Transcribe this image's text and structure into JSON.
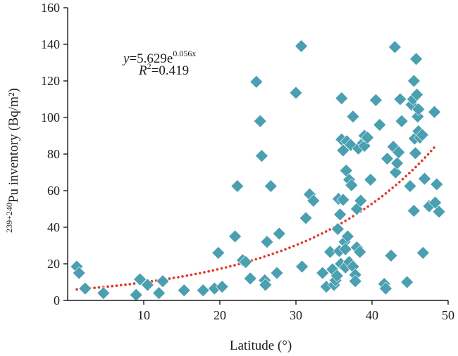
{
  "chart_data": {
    "type": "scatter",
    "xlabel": "Latitude (°)",
    "ylabel": "Pu inventory (Bq/m²)",
    "ylabel_sup": "239+240",
    "xlim": [
      0,
      50
    ],
    "ylim": [
      0,
      160
    ],
    "xticks": [
      10,
      20,
      30,
      40,
      50
    ],
    "yticks": [
      0,
      20,
      40,
      60,
      80,
      100,
      120,
      140,
      160
    ],
    "grid": false,
    "marker_color": "#4A9FB0",
    "trend_color": "#E03A2E",
    "trend": {
      "a": 5.629,
      "b": 0.056
    },
    "annotation": {
      "equation": {
        "y": "y",
        "eq": "=5.629e",
        "exp": "0.056x"
      },
      "r2": {
        "r": "R",
        "sup": "2",
        "val": "=0.419"
      }
    },
    "points": [
      [
        1.2,
        18.5
      ],
      [
        1.5,
        15
      ],
      [
        2.3,
        6.5
      ],
      [
        4.7,
        4
      ],
      [
        9,
        3
      ],
      [
        9.5,
        11.5
      ],
      [
        10.5,
        8.5
      ],
      [
        12,
        4
      ],
      [
        12.5,
        10.5
      ],
      [
        15.3,
        5.5
      ],
      [
        17.8,
        5.5
      ],
      [
        19.3,
        6.5
      ],
      [
        19.8,
        26
      ],
      [
        20.3,
        7.5
      ],
      [
        22,
        35
      ],
      [
        22.3,
        62.5
      ],
      [
        23,
        22
      ],
      [
        23.4,
        21
      ],
      [
        24,
        12
      ],
      [
        24.8,
        119.5
      ],
      [
        25.3,
        98
      ],
      [
        25.5,
        79
      ],
      [
        25.9,
        11
      ],
      [
        26,
        8.5
      ],
      [
        26.2,
        32
      ],
      [
        26.7,
        62.5
      ],
      [
        27.5,
        15
      ],
      [
        27.8,
        36.5
      ],
      [
        30,
        113.5
      ],
      [
        30.7,
        139
      ],
      [
        30.8,
        18.5
      ],
      [
        31.3,
        45
      ],
      [
        31.8,
        58
      ],
      [
        32.3,
        54.5
      ],
      [
        33.5,
        15
      ],
      [
        34,
        7.5
      ],
      [
        34.5,
        26.5
      ],
      [
        34.8,
        17
      ],
      [
        35,
        8.5
      ],
      [
        35.2,
        11
      ],
      [
        35.4,
        13.5
      ],
      [
        35.5,
        39
      ],
      [
        35.6,
        55.5
      ],
      [
        35.7,
        27
      ],
      [
        35.8,
        47
      ],
      [
        35.9,
        20
      ],
      [
        36,
        88
      ],
      [
        36,
        110.5
      ],
      [
        36.2,
        82
      ],
      [
        36.2,
        55
      ],
      [
        36.4,
        32
      ],
      [
        36.5,
        28
      ],
      [
        36.5,
        18
      ],
      [
        36.6,
        71
      ],
      [
        36.7,
        87
      ],
      [
        36.8,
        35
      ],
      [
        37,
        66
      ],
      [
        37,
        21
      ],
      [
        37.2,
        85
      ],
      [
        37.3,
        63
      ],
      [
        37.5,
        100.5
      ],
      [
        37.5,
        18.5
      ],
      [
        37.8,
        14
      ],
      [
        37.8,
        10.5
      ],
      [
        38,
        29
      ],
      [
        38,
        50
      ],
      [
        38.2,
        83
      ],
      [
        38.4,
        26.5
      ],
      [
        38.5,
        54.5
      ],
      [
        38.8,
        86
      ],
      [
        39,
        84.5
      ],
      [
        39,
        90
      ],
      [
        39.4,
        89
      ],
      [
        39.8,
        66
      ],
      [
        40.5,
        109.5
      ],
      [
        41,
        96
      ],
      [
        41.6,
        9
      ],
      [
        41.8,
        6.5
      ],
      [
        42,
        77.5
      ],
      [
        42.5,
        24.5
      ],
      [
        43,
        138.5
      ],
      [
        42.8,
        84
      ],
      [
        43.1,
        70
      ],
      [
        43.3,
        75
      ],
      [
        43.5,
        81
      ],
      [
        43.7,
        110
      ],
      [
        43.9,
        98
      ],
      [
        44.6,
        10
      ],
      [
        45,
        62.5
      ],
      [
        45.2,
        107
      ],
      [
        45.4,
        110
      ],
      [
        45.5,
        49
      ],
      [
        45.5,
        120
      ],
      [
        45.6,
        88.5
      ],
      [
        45.7,
        80.5
      ],
      [
        45.8,
        132
      ],
      [
        45.9,
        112.5
      ],
      [
        46,
        100.5
      ],
      [
        46.1,
        104.5
      ],
      [
        46.1,
        92.5
      ],
      [
        46.3,
        89
      ],
      [
        46.6,
        90.5
      ],
      [
        46.9,
        66.5
      ],
      [
        46.7,
        26
      ],
      [
        47.5,
        51.5
      ],
      [
        48.2,
        103
      ],
      [
        48.3,
        53.5
      ],
      [
        48.5,
        63.5
      ],
      [
        48.8,
        48.5
      ]
    ]
  }
}
